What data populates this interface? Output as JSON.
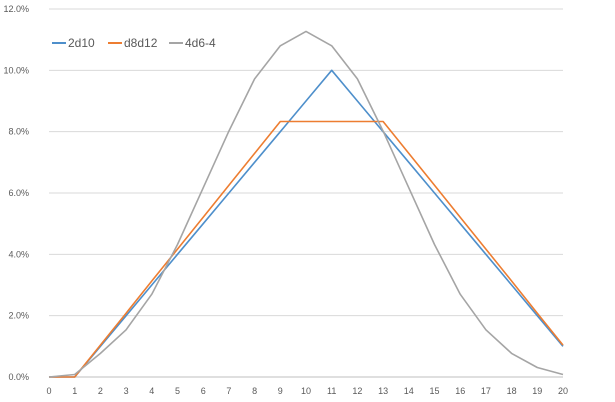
{
  "chart_data": {
    "type": "line",
    "x": [
      0,
      1,
      2,
      3,
      4,
      5,
      6,
      7,
      8,
      9,
      10,
      11,
      12,
      13,
      14,
      15,
      16,
      17,
      18,
      19,
      20
    ],
    "x_tick_labels": [
      "0",
      "1",
      "2",
      "3",
      "4",
      "5",
      "6",
      "7",
      "8",
      "9",
      "10",
      "11",
      "12",
      "13",
      "14",
      "15",
      "16",
      "17",
      "18",
      "19",
      "20"
    ],
    "y_tick_labels": [
      "0.0%",
      "2.0%",
      "4.0%",
      "6.0%",
      "8.0%",
      "10.0%",
      "12.0%"
    ],
    "y_ticks": [
      0,
      2,
      4,
      6,
      8,
      10,
      12
    ],
    "ylim": [
      0,
      12
    ],
    "grid": true,
    "legend_position": "top-left",
    "series": [
      {
        "name": "2d10",
        "color": "#4e8fcb",
        "values": [
          0,
          0,
          1,
          2,
          3,
          4,
          5,
          6,
          7,
          8,
          9,
          10,
          9,
          8,
          7,
          6,
          5,
          4,
          3,
          2,
          1
        ]
      },
      {
        "name": "d8d12",
        "color": "#ed7d31",
        "values": [
          0,
          0,
          1.04,
          2.08,
          3.13,
          4.17,
          5.21,
          6.25,
          7.29,
          8.33,
          8.33,
          8.33,
          8.33,
          8.33,
          7.29,
          6.25,
          5.21,
          4.17,
          3.13,
          2.08,
          1.04
        ]
      },
      {
        "name": "4d6-4",
        "color": "#a5a5a5",
        "values": [
          0,
          0.08,
          0.77,
          1.54,
          2.7,
          4.32,
          6.17,
          8.02,
          9.72,
          10.8,
          11.27,
          10.8,
          9.72,
          8.02,
          6.17,
          4.32,
          2.7,
          1.54,
          0.77,
          0.31,
          0.08
        ]
      }
    ]
  }
}
